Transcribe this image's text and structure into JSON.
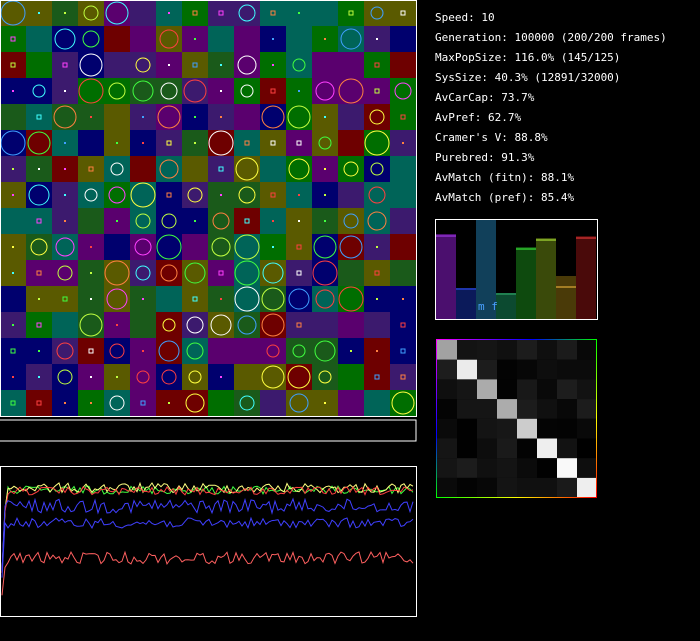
{
  "stats": [
    "Speed: 10",
    "Generation: 100000 (200/200 frames)",
    "MaxPopSize: 116.0% (145/125)",
    "SysSize: 40.3% (12891/32000)",
    "AvCarCap: 73.7%",
    "AvPref: 62.7%",
    "Cramer's V: 88.8%",
    "Purebred: 91.3%",
    "AvMatch (fitn): 88.1%",
    "AvMatch (pref): 85.4%"
  ],
  "bar_panel": {
    "label": "m f"
  }
}
